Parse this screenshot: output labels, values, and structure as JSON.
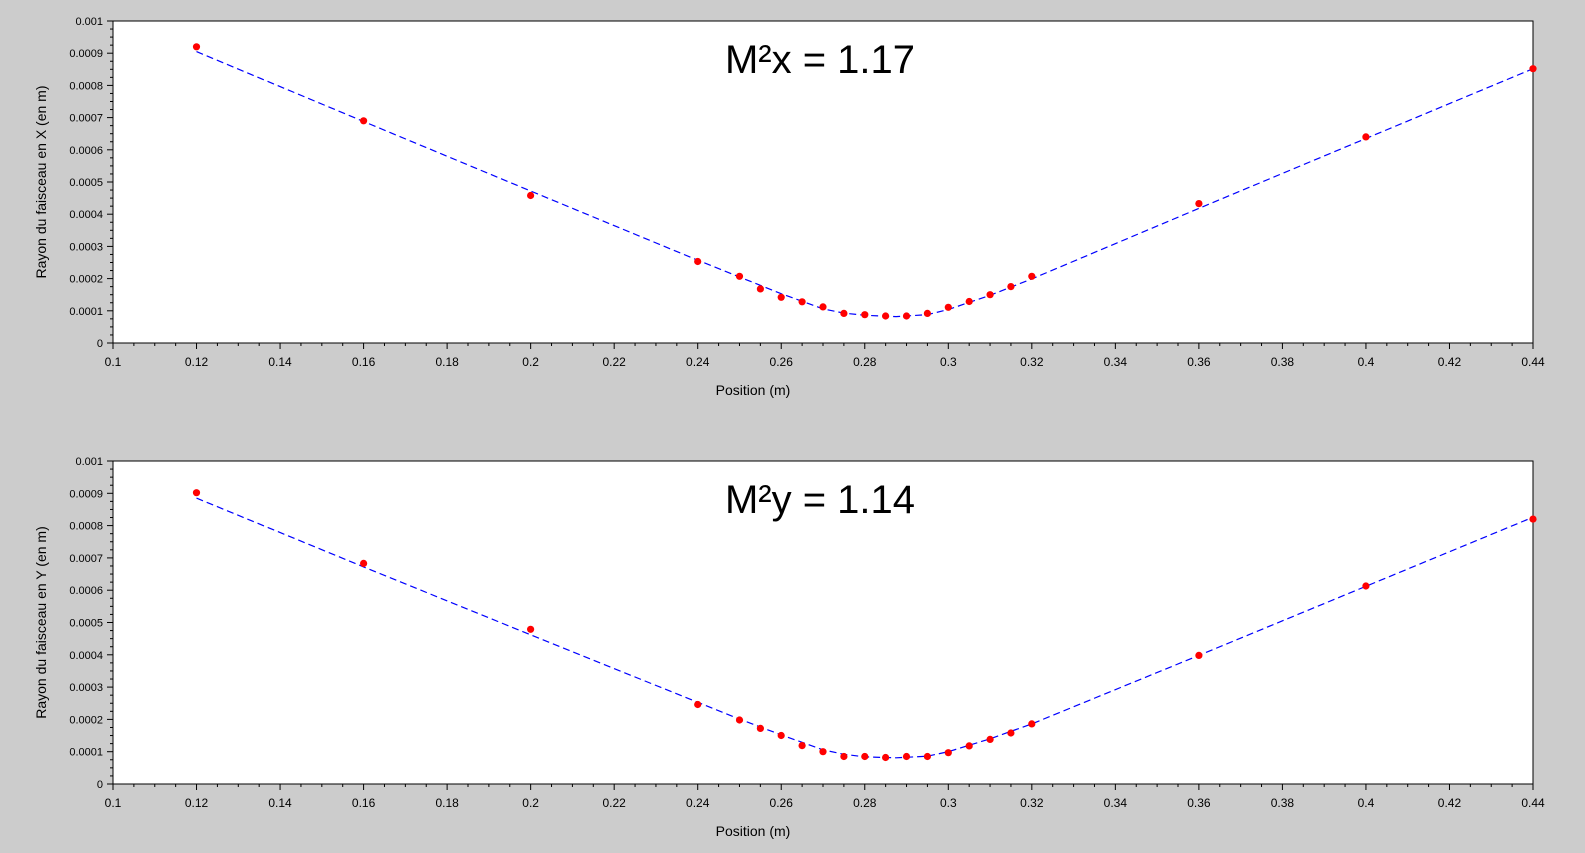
{
  "chart_data": [
    {
      "type": "scatter",
      "annotation": "M²x = 1.17",
      "xlabel": "Position (m)",
      "ylabel": "Rayon du faisceau en X (en m)",
      "xlim": [
        0.1,
        0.44
      ],
      "ylim": [
        0,
        0.001
      ],
      "x_ticks": [
        "0.1",
        "0.12",
        "0.14",
        "0.16",
        "0.18",
        "0.2",
        "0.22",
        "0.24",
        "0.26",
        "0.28",
        "0.3",
        "0.32",
        "0.34",
        "0.36",
        "0.38",
        "0.4",
        "0.42",
        "0.44"
      ],
      "y_ticks": [
        "0",
        "0.0001",
        "0.0002",
        "0.0003",
        "0.0004",
        "0.0005",
        "0.0006",
        "0.0007",
        "0.0008",
        "0.0009",
        "0.001"
      ],
      "series": [
        {
          "kind": "points",
          "color": "#ff0000",
          "x": [
            0.12,
            0.16,
            0.2,
            0.24,
            0.25,
            0.255,
            0.26,
            0.265,
            0.27,
            0.275,
            0.28,
            0.285,
            0.29,
            0.295,
            0.3,
            0.305,
            0.31,
            0.315,
            0.32,
            0.36,
            0.4,
            0.44
          ],
          "y": [
            0.00092,
            0.00069,
            0.000458,
            0.000253,
            0.000207,
            0.000168,
            0.000142,
            0.000128,
            0.000112,
            9.2e-05,
            8.8e-05,
            8.4e-05,
            8.4e-05,
            9.2e-05,
            0.000111,
            0.000129,
            0.00015,
            0.000175,
            0.000207,
            0.000433,
            0.00064,
            0.000852
          ]
        },
        {
          "kind": "fit",
          "color": "#0000ff",
          "dashed": true,
          "x": [
            0.12,
            0.16,
            0.2,
            0.24,
            0.25,
            0.26,
            0.27,
            0.275,
            0.28,
            0.2875,
            0.295,
            0.3,
            0.31,
            0.32,
            0.36,
            0.4,
            0.44
          ],
          "y": [
            0.000905,
            0.000688,
            0.000472,
            0.000257,
            0.000205,
            0.000153,
            0.000106,
            9.3e-05,
            8.6e-05,
            8.2e-05,
            8.8e-05,
            0.000104,
            0.000148,
            0.000199,
            0.000418,
            0.000635,
            0.000852
          ]
        }
      ]
    },
    {
      "type": "scatter",
      "annotation": "M²y = 1.14",
      "xlabel": "Position (m)",
      "ylabel": "Rayon du faisceau en Y (en m)",
      "xlim": [
        0.1,
        0.44
      ],
      "ylim": [
        0,
        0.001
      ],
      "x_ticks": [
        "0.1",
        "0.12",
        "0.14",
        "0.16",
        "0.18",
        "0.2",
        "0.22",
        "0.24",
        "0.26",
        "0.28",
        "0.3",
        "0.32",
        "0.34",
        "0.36",
        "0.38",
        "0.4",
        "0.42",
        "0.44"
      ],
      "y_ticks": [
        "0",
        "0.0001",
        "0.0002",
        "0.0003",
        "0.0004",
        "0.0005",
        "0.0006",
        "0.0007",
        "0.0008",
        "0.0009",
        "0.001"
      ],
      "series": [
        {
          "kind": "points",
          "color": "#ff0000",
          "x": [
            0.12,
            0.16,
            0.2,
            0.24,
            0.25,
            0.255,
            0.26,
            0.265,
            0.27,
            0.275,
            0.28,
            0.285,
            0.29,
            0.295,
            0.3,
            0.305,
            0.31,
            0.315,
            0.32,
            0.36,
            0.4,
            0.44
          ],
          "y": [
            0.000902,
            0.000683,
            0.000479,
            0.000246,
            0.000198,
            0.000172,
            0.00015,
            0.000119,
            0.0001,
            8.5e-05,
            8.5e-05,
            8.2e-05,
            8.5e-05,
            8.5e-05,
            9.7e-05,
            0.000118,
            0.000138,
            0.000158,
            0.000186,
            0.000398,
            0.000613,
            0.00082
          ]
        },
        {
          "kind": "fit",
          "color": "#0000ff",
          "dashed": true,
          "x": [
            0.12,
            0.16,
            0.2,
            0.24,
            0.25,
            0.26,
            0.27,
            0.275,
            0.28,
            0.2875,
            0.295,
            0.3,
            0.31,
            0.32,
            0.36,
            0.4,
            0.44
          ],
          "y": [
            0.000885,
            0.000672,
            0.000462,
            0.000253,
            0.000201,
            0.000152,
            0.000106,
            9.2e-05,
            8.4e-05,
            8.1e-05,
            8.6e-05,
            0.0001,
            0.00014,
            0.000186,
            0.000398,
            0.000612,
            0.000826
          ]
        }
      ]
    }
  ]
}
